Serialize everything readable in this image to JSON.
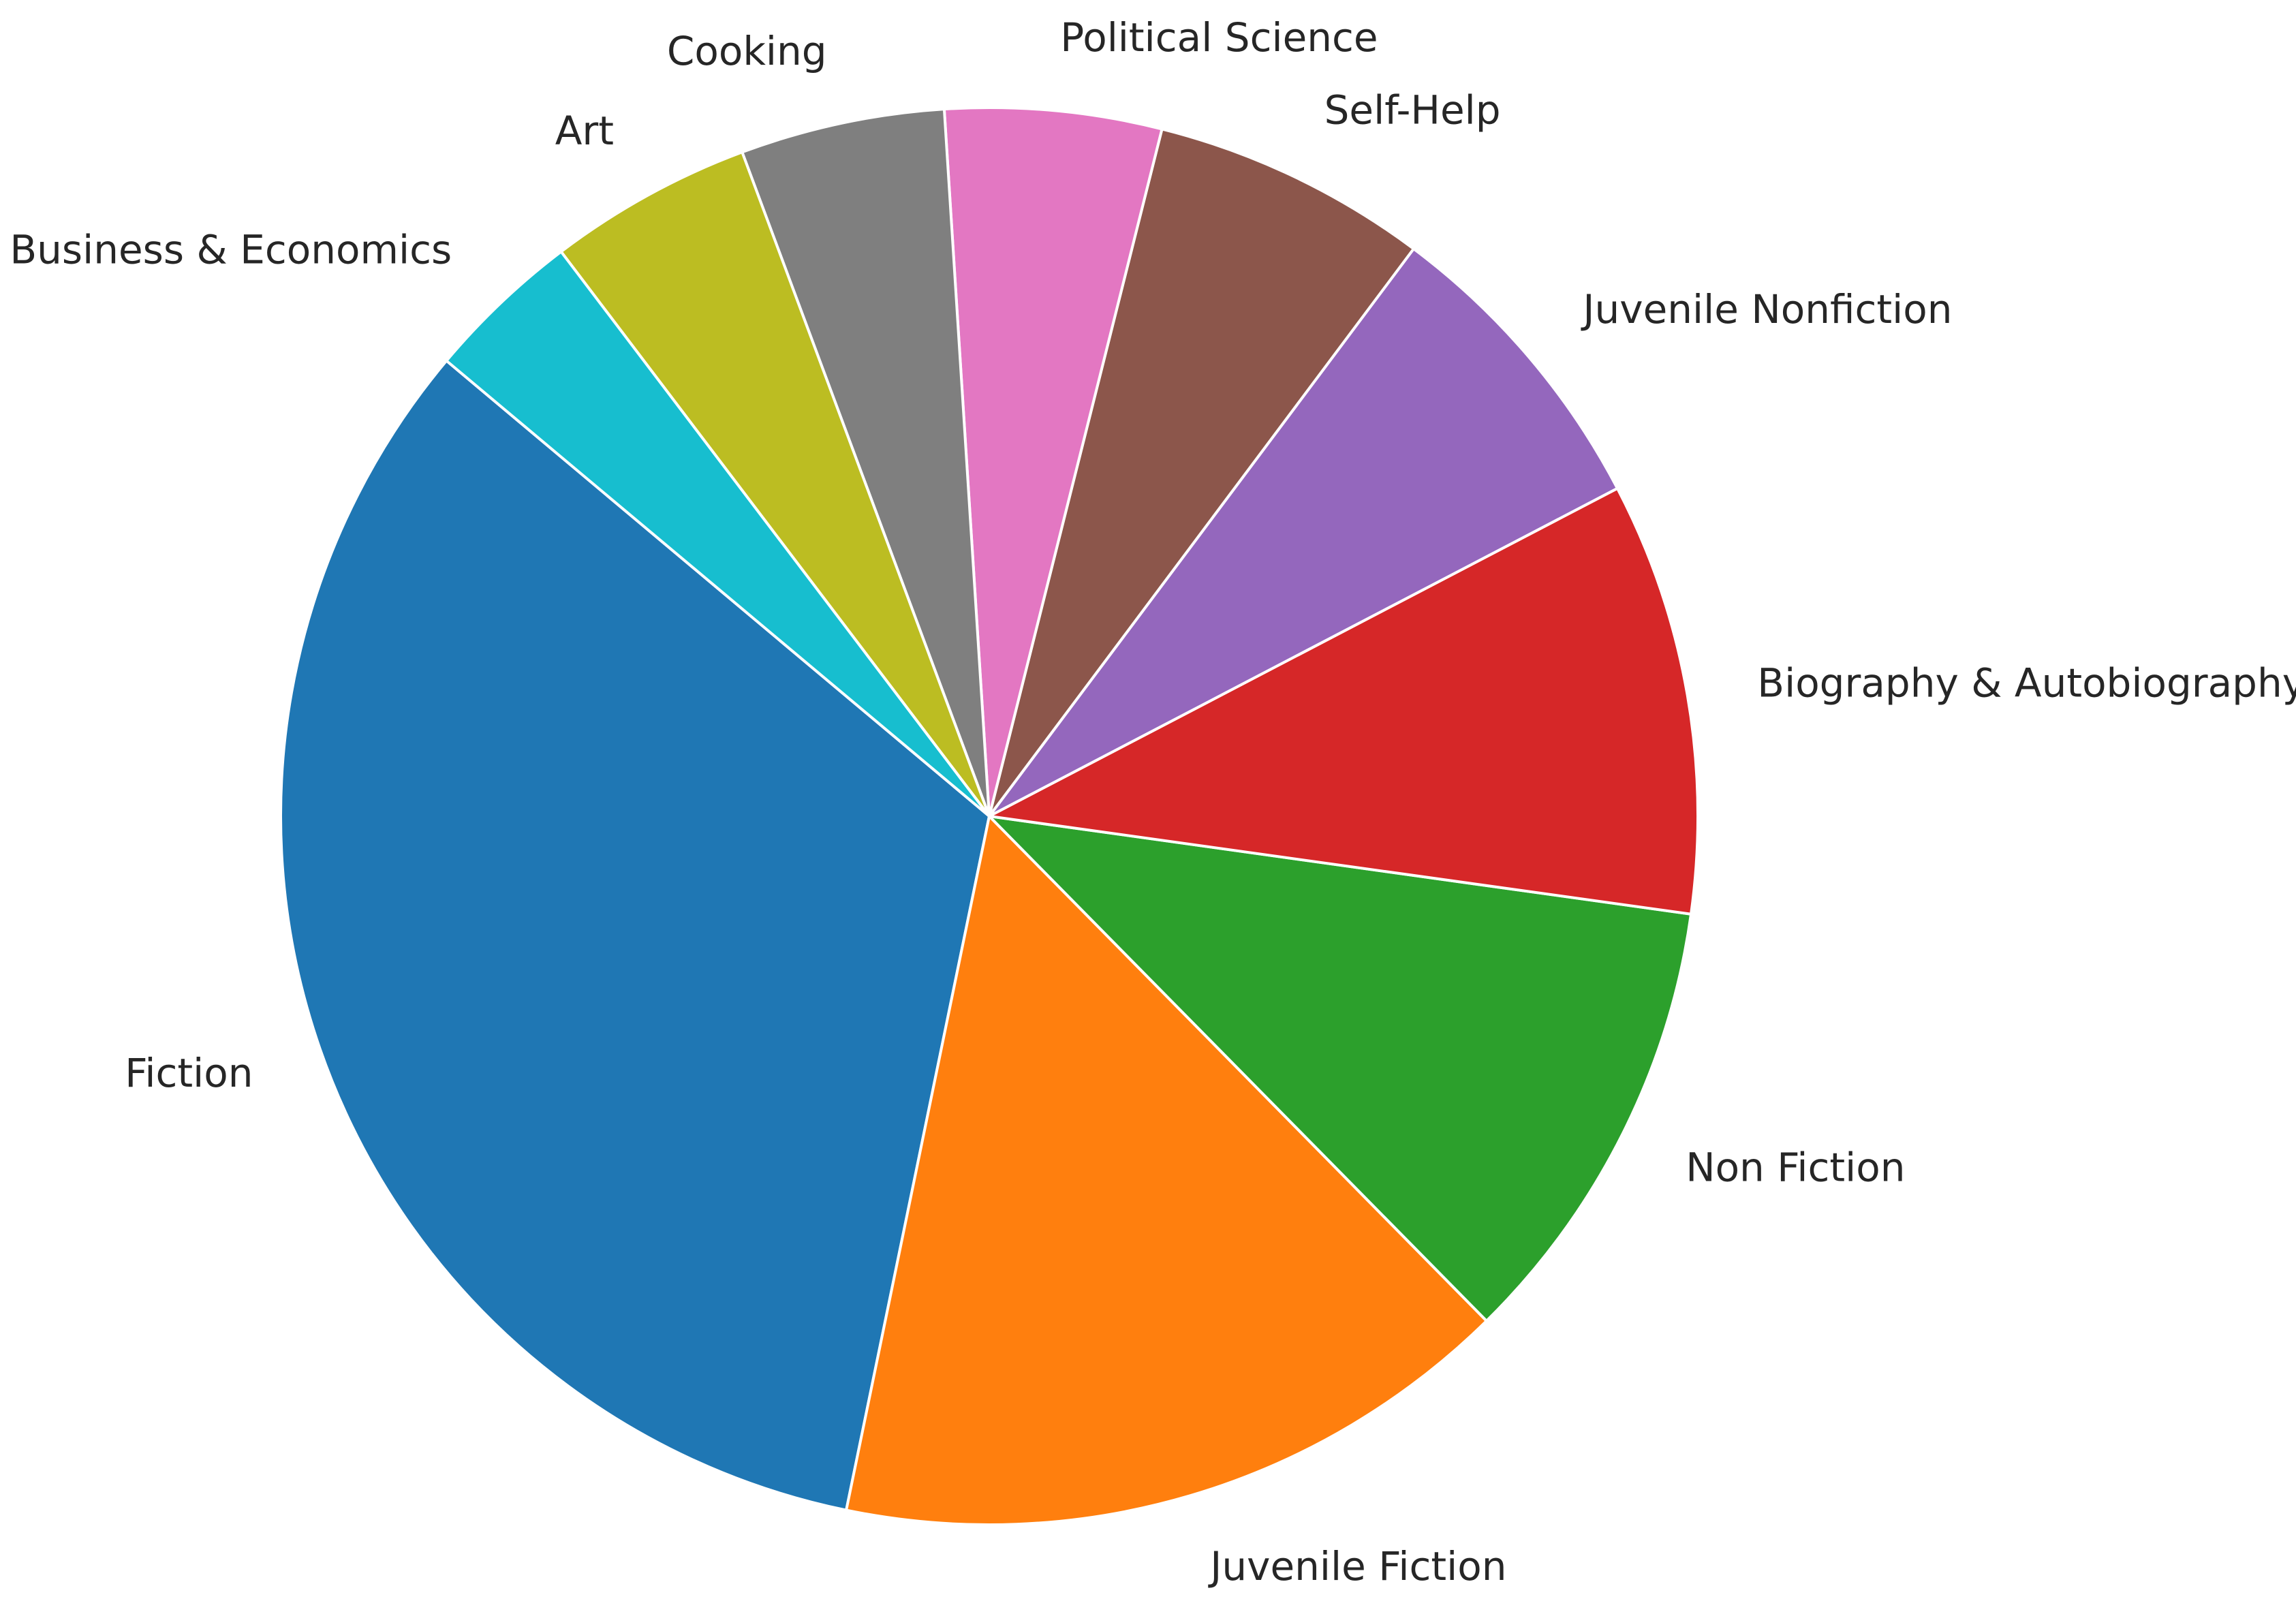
{
  "chart_data": {
    "type": "pie",
    "title": "",
    "start_angle_deg": 140,
    "direction": "counterclockwise",
    "slices": [
      {
        "label": "Fiction",
        "value": 120,
        "color": "#1f77b4"
      },
      {
        "label": "Juvenile Fiction",
        "value": 57,
        "color": "#ff7f0e"
      },
      {
        "label": "Non Fiction",
        "value": 38,
        "color": "#2ca02c"
      },
      {
        "label": "Biography & Autobiography",
        "value": 36,
        "color": "#d62728"
      },
      {
        "label": "Juvenile Nonfiction",
        "value": 26,
        "color": "#9467bd"
      },
      {
        "label": "Self-Help",
        "value": 23,
        "color": "#8c564b"
      },
      {
        "label": "Political Science",
        "value": 18,
        "color": "#e377c2"
      },
      {
        "label": "Cooking",
        "value": 17,
        "color": "#7f7f7f"
      },
      {
        "label": "Art",
        "value": 17,
        "color": "#bcbd22"
      },
      {
        "label": "Business & Economics",
        "value": 13,
        "color": "#17becf"
      }
    ]
  }
}
